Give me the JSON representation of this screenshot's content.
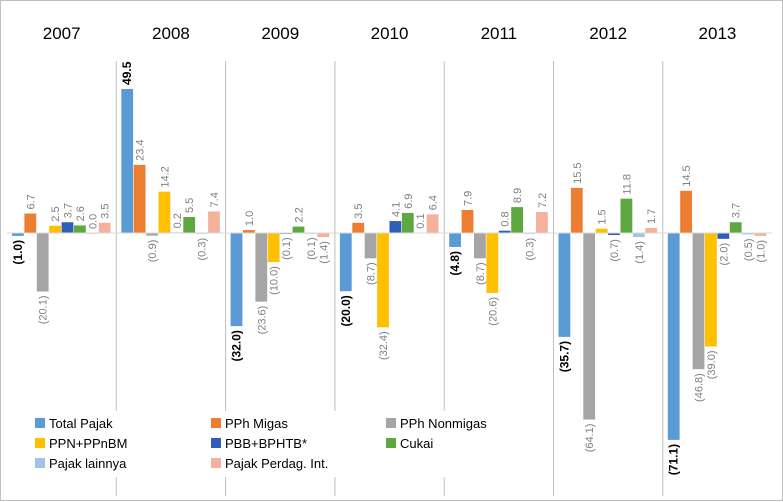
{
  "chart_data": {
    "type": "bar",
    "title": "",
    "xlabel": "",
    "ylabel": "",
    "ylim": [
      -75,
      52
    ],
    "grid": false,
    "legend_position": "bottom-left",
    "categories": [
      "2007",
      "2008",
      "2009",
      "2010",
      "2011",
      "2012",
      "2013"
    ],
    "series": [
      {
        "name": "Total Pajak",
        "color": "#5b9bd5",
        "values": [
          -1.0,
          49.5,
          -32.0,
          -20.0,
          -4.8,
          -35.7,
          -71.1
        ],
        "labels": [
          "(1.0)",
          "49.5",
          "(32.0)",
          "(20.0)",
          "(4.8)",
          "(35.7)",
          "(71.1)"
        ]
      },
      {
        "name": "PPh Migas",
        "color": "#ed7d31",
        "values": [
          6.7,
          23.4,
          1.0,
          3.5,
          7.9,
          15.5,
          14.5
        ],
        "labels": [
          "6.7",
          "23.4",
          "1.0",
          "3.5",
          "7.9",
          "15.5",
          "14.5"
        ]
      },
      {
        "name": "PPh Nonmigas",
        "color": "#a5a5a5",
        "values": [
          -20.1,
          -0.9,
          -23.6,
          -8.7,
          -8.7,
          -64.1,
          -46.8
        ],
        "labels": [
          "(20.1)",
          "(0.9)",
          "(23.6)",
          "(8.7)",
          "(8.7)",
          "(64.1)",
          "(46.8)"
        ]
      },
      {
        "name": "PPN+PPnBM",
        "color": "#ffc000",
        "values": [
          2.5,
          14.2,
          -10.0,
          -32.4,
          -20.6,
          1.5,
          -39.0
        ],
        "labels": [
          "2.5",
          "14.2",
          "(10.0)",
          "(32.4)",
          "(20.6)",
          "1.5",
          "(39.0)"
        ]
      },
      {
        "name": "PBB+BPHTB*",
        "color": "#2f5eb7",
        "values": [
          3.7,
          0.2,
          -0.1,
          4.1,
          0.8,
          -0.7,
          -2.0
        ],
        "labels": [
          "3.7",
          "0.2",
          "(0.1)",
          "4.1",
          "0.8",
          "(0.7)",
          "(2.0)"
        ]
      },
      {
        "name": "Cukai",
        "color": "#5fa840",
        "values": [
          2.6,
          5.5,
          2.2,
          6.9,
          8.9,
          11.8,
          3.7
        ],
        "labels": [
          "2.6",
          "5.5",
          "2.2",
          "6.9",
          "8.9",
          "11.8",
          "3.7"
        ]
      },
      {
        "name": "Pajak lainnya",
        "color": "#9dc3e6",
        "values": [
          0.0,
          -0.3,
          -0.1,
          0.1,
          -0.3,
          -1.4,
          -0.5
        ],
        "labels": [
          "0.0",
          "(0.3)",
          "(0.1)",
          "0.1",
          "(0.3)",
          "(1.4)",
          "(0.5)"
        ]
      },
      {
        "name": "Pajak Perdag. Int.",
        "color": "#f4b29c",
        "values": [
          3.5,
          7.4,
          -1.4,
          6.4,
          7.2,
          1.7,
          -1.0
        ],
        "labels": [
          "3.5",
          "7.4",
          "(1.4)",
          "6.4",
          "7.2",
          "1.7",
          "(1.0)"
        ]
      }
    ]
  }
}
